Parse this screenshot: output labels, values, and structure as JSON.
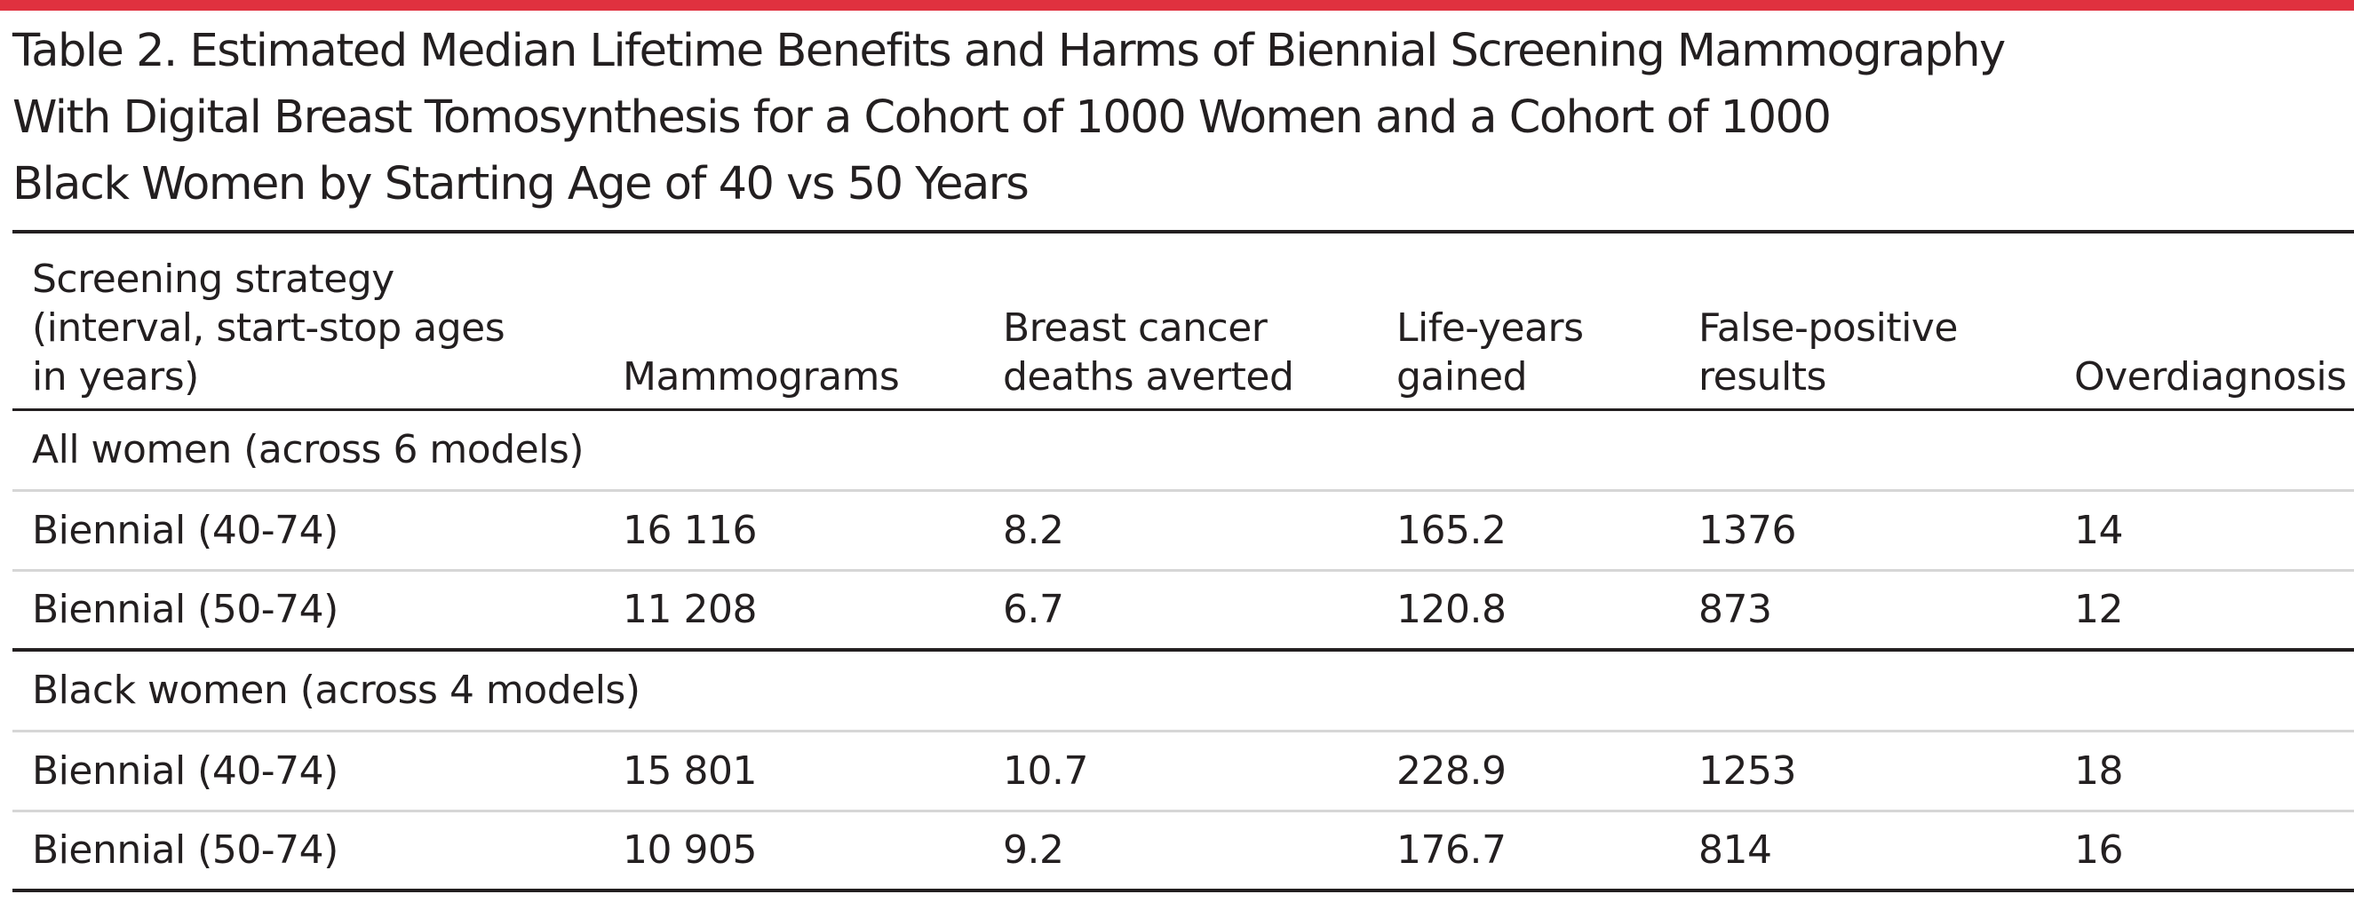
{
  "accent_color": "#e0313f",
  "caption": {
    "lines": [
      "Table 2. Estimated Median Lifetime Benefits and Harms of Biennial Screening Mammography",
      "With Digital Breast Tomosynthesis for a Cohort of 1000 Women and a Cohort of 1000",
      "Black Women by Starting Age of 40 vs 50 Years"
    ]
  },
  "table": {
    "headers": [
      {
        "lines": [
          "Screening strategy",
          "(interval, start-stop ages",
          "in years)"
        ]
      },
      {
        "lines": [
          "Mammograms"
        ]
      },
      {
        "lines": [
          "Breast cancer",
          "deaths averted"
        ]
      },
      {
        "lines": [
          "Life-years",
          "gained"
        ]
      },
      {
        "lines": [
          "False-positive",
          "results"
        ]
      },
      {
        "lines": [
          "Overdiagnosis"
        ]
      }
    ],
    "groups": [
      {
        "label": "All women (across 6 models)",
        "rows": [
          [
            "Biennial (40-74)",
            "16 116",
            "8.2",
            "165.2",
            "1376",
            "14"
          ],
          [
            "Biennial (50-74)",
            "11 208",
            "6.7",
            "120.8",
            "873",
            "12"
          ]
        ]
      },
      {
        "label": "Black women (across 4 models)",
        "rows": [
          [
            "Biennial (40-74)",
            "15 801",
            "10.7",
            "228.9",
            "1253",
            "18"
          ],
          [
            "Biennial (50-74)",
            "10 905",
            "9.2",
            "176.7",
            "814",
            "16"
          ]
        ]
      }
    ]
  }
}
